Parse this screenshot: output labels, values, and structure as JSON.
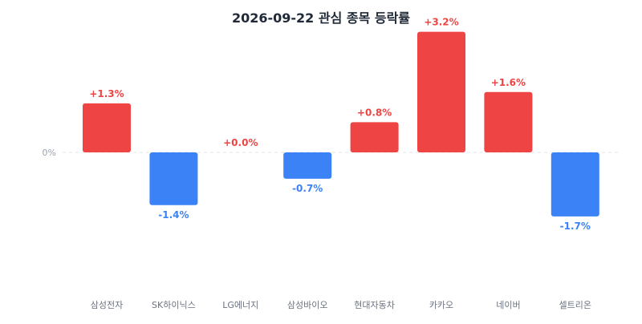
{
  "chart_data": {
    "type": "bar",
    "title": "2026-09-22 관심 종목 등락률",
    "categories": [
      "삼성전자",
      "SK하이닉스",
      "LG에너지",
      "삼성바이오",
      "현대자동차",
      "카카오",
      "네이버",
      "셀트리온"
    ],
    "values": [
      1.3,
      -1.4,
      0.0,
      -0.7,
      0.8,
      3.2,
      1.6,
      -1.7
    ],
    "value_labels": [
      "+1.3%",
      "-1.4%",
      "+0.0%",
      "-0.7%",
      "+0.8%",
      "+3.2%",
      "+1.6%",
      "-1.7%"
    ],
    "baseline_label": "0%",
    "grid": false,
    "colors": {
      "positive": "#ef4444",
      "negative": "#3b82f6",
      "baseline": "#e5e7eb",
      "category_text": "#6b7280",
      "title": "#1f2937"
    }
  }
}
